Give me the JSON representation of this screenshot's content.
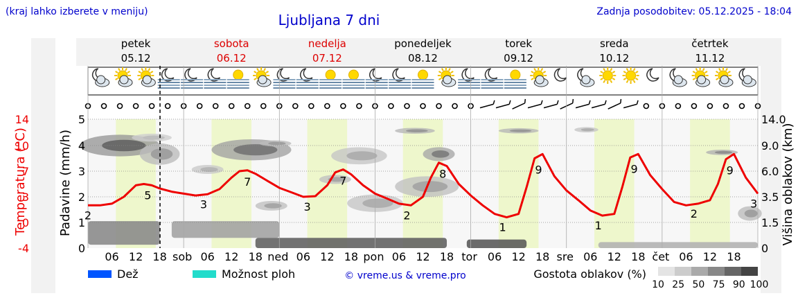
{
  "header": {
    "hint": "(kraj lahko izberete v meniju)",
    "title": "Ljubljana 7 dni",
    "updated": "Zadnja posodobitev: 05.12.2025 - 18:04"
  },
  "days": [
    {
      "name": "petek",
      "date": "05.12",
      "weekend": false
    },
    {
      "name": "sobota",
      "date": "06.12",
      "weekend": true
    },
    {
      "name": "nedelja",
      "date": "07.12",
      "weekend": true
    },
    {
      "name": "ponedeljek",
      "date": "08.12",
      "weekend": false
    },
    {
      "name": "torek",
      "date": "09.12",
      "weekend": false
    },
    {
      "name": "sreda",
      "date": "10.12",
      "weekend": false
    },
    {
      "name": "četrtek",
      "date": "11.12",
      "weekend": false
    }
  ],
  "weather_icons": [
    "moon-cloud",
    "sun-cloud",
    "sun-cloud",
    "fog-night",
    "fog-night",
    "fog-night",
    "fog-day",
    "sun-cloud",
    "fog-night",
    "fog-night",
    "fog-day",
    "fog-day",
    "fog-night",
    "fog-night",
    "fog-day",
    "sun-cloud",
    "fog-night",
    "fog-night",
    "fog-day",
    "sun-cloud",
    "moon",
    "moon-cloud",
    "sun",
    "sun",
    "moon",
    "moon-cloud",
    "sun-cloud",
    "sun-cloud",
    "moon-cloud"
  ],
  "chart_data": {
    "type": "line",
    "title": "Ljubljana 7 dni",
    "hours_total": 168,
    "x_ticks": [
      "06",
      "12",
      "18",
      "sob",
      "06",
      "12",
      "18",
      "ned",
      "06",
      "12",
      "18",
      "pon",
      "06",
      "12",
      "18",
      "tor",
      "06",
      "12",
      "18",
      "sre",
      "06",
      "12",
      "18",
      "čet",
      "06",
      "12",
      "18"
    ],
    "y_left_temp": {
      "label": "Temperatura (°C)",
      "ticks": [
        "14",
        "10",
        "7",
        "3",
        "-0",
        "-4"
      ],
      "color": "#ff0000"
    },
    "y_left_precip": {
      "label": "Padavine (mm/h)",
      "ticks": [
        "5",
        "4",
        "3",
        "2",
        "1",
        "0"
      ],
      "range": [
        0,
        5
      ]
    },
    "y_right": {
      "label": "Višina oblakov (km)",
      "ticks": [
        "14.0",
        "9.0",
        "6.0",
        "3.5",
        "1.5",
        "0"
      ]
    },
    "temperature_series": {
      "name": "Temperatura",
      "x_hours": [
        0,
        3,
        6,
        9,
        12,
        14,
        16,
        18,
        21,
        24,
        27,
        30,
        33,
        36,
        38,
        40,
        42,
        45,
        48,
        51,
        54,
        57,
        60,
        62,
        64,
        66,
        69,
        72,
        75,
        78,
        81,
        84,
        86,
        88,
        90,
        93,
        96,
        99,
        102,
        105,
        108,
        110,
        112,
        114,
        117,
        120,
        123,
        126,
        129,
        132,
        134,
        136,
        138,
        141,
        144,
        147,
        150,
        153,
        156,
        158,
        160,
        162,
        165,
        168
      ],
      "temps": [
        2.0,
        2.0,
        2.2,
        3.0,
        4.8,
        5.0,
        4.8,
        4.3,
        3.8,
        3.5,
        3.2,
        3.4,
        4.2,
        6.0,
        7.0,
        7.1,
        6.6,
        5.5,
        4.4,
        3.7,
        3.0,
        3.1,
        4.8,
        6.8,
        7.2,
        6.5,
        4.8,
        3.5,
        2.8,
        2.2,
        2.0,
        3.0,
        6.0,
        8.0,
        7.6,
        5.0,
        3.2,
        2.0,
        1.0,
        0.6,
        1.0,
        4.5,
        8.5,
        9.0,
        6.2,
        4.0,
        2.6,
        1.4,
        0.8,
        1.0,
        4.5,
        8.6,
        9.0,
        6.4,
        4.2,
        2.4,
        2.0,
        2.2,
        2.6,
        5.0,
        8.4,
        9.0,
        6.0,
        3.5
      ],
      "labels": [
        {
          "hour": 0,
          "value": "2"
        },
        {
          "hour": 15,
          "value": "5"
        },
        {
          "hour": 29,
          "value": "3"
        },
        {
          "hour": 40,
          "value": "7"
        },
        {
          "hour": 55,
          "value": "3"
        },
        {
          "hour": 64,
          "value": "7"
        },
        {
          "hour": 80,
          "value": "2"
        },
        {
          "hour": 89,
          "value": "8"
        },
        {
          "hour": 104,
          "value": "1"
        },
        {
          "hour": 113,
          "value": "9"
        },
        {
          "hour": 128,
          "value": "1"
        },
        {
          "hour": 137,
          "value": "9"
        },
        {
          "hour": 152,
          "value": "2"
        },
        {
          "hour": 161,
          "value": "9"
        },
        {
          "hour": 167,
          "value": "3"
        }
      ]
    },
    "cloud_blobs_km": [
      {
        "h": 8,
        "alt": 9.0,
        "dh": 10,
        "dalt": 2.5,
        "d": 85
      },
      {
        "h": 18,
        "alt": 8.0,
        "dh": 5,
        "dalt": 2.0,
        "d": 50
      },
      {
        "h": 16,
        "alt": 10.5,
        "dh": 5,
        "dalt": 1.2,
        "d": 30
      },
      {
        "h": 41,
        "alt": 8.5,
        "dh": 10,
        "dalt": 2.2,
        "d": 75
      },
      {
        "h": 30,
        "alt": 6.2,
        "dh": 4,
        "dalt": 0.8,
        "d": 35
      },
      {
        "h": 47,
        "alt": 9.4,
        "dh": 4,
        "dalt": 0.9,
        "d": 50
      },
      {
        "h": 68,
        "alt": 7.8,
        "dh": 7,
        "dalt": 1.6,
        "d": 40
      },
      {
        "h": 62,
        "alt": 5.2,
        "dh": 4,
        "dalt": 0.7,
        "d": 45
      },
      {
        "h": 46,
        "alt": 2.8,
        "dh": 4,
        "dalt": 0.6,
        "d": 45
      },
      {
        "h": 82,
        "alt": 11.8,
        "dh": 5,
        "dalt": 0.9,
        "d": 55
      },
      {
        "h": 88,
        "alt": 8.0,
        "dh": 4,
        "dalt": 1.3,
        "d": 70
      },
      {
        "h": 85,
        "alt": 4.5,
        "dh": 8,
        "dalt": 1.6,
        "d": 45
      },
      {
        "h": 72,
        "alt": 3.0,
        "dh": 7,
        "dalt": 1.1,
        "d": 40
      },
      {
        "h": 108,
        "alt": 11.8,
        "dh": 5,
        "dalt": 0.8,
        "d": 55
      },
      {
        "h": 125,
        "alt": 12.0,
        "dh": 3,
        "dalt": 0.8,
        "d": 40
      },
      {
        "h": 159,
        "alt": 8.2,
        "dh": 4,
        "dalt": 0.5,
        "d": 60
      },
      {
        "h": 166,
        "alt": 2.2,
        "dh": 3,
        "dalt": 0.9,
        "d": 50
      }
    ],
    "low_cloud_bands": [
      {
        "from": 0,
        "to": 18,
        "alt_from": 0.2,
        "alt_to": 1.6,
        "d": 60
      },
      {
        "from": 21,
        "to": 48,
        "alt_from": 0.6,
        "alt_to": 1.6,
        "d": 45
      },
      {
        "from": 42,
        "to": 90,
        "alt_from": 0.0,
        "alt_to": 0.6,
        "d": 85
      },
      {
        "from": 95,
        "to": 110,
        "alt_from": 0.0,
        "alt_to": 0.5,
        "d": 90
      },
      {
        "from": 128,
        "to": 168,
        "alt_from": 0.0,
        "alt_to": 0.35,
        "d": 35
      }
    ]
  },
  "legend": {
    "rain": "Dež",
    "storm": "Možnost ploh",
    "credit": "© vreme.us & vreme.pro",
    "cloud_title": "Gostota oblakov (%)",
    "cloud_levels": [
      "10",
      "25",
      "50",
      "75",
      "90",
      "100"
    ],
    "rain_color": "#0055ff",
    "storm_color": "#22dccb"
  }
}
